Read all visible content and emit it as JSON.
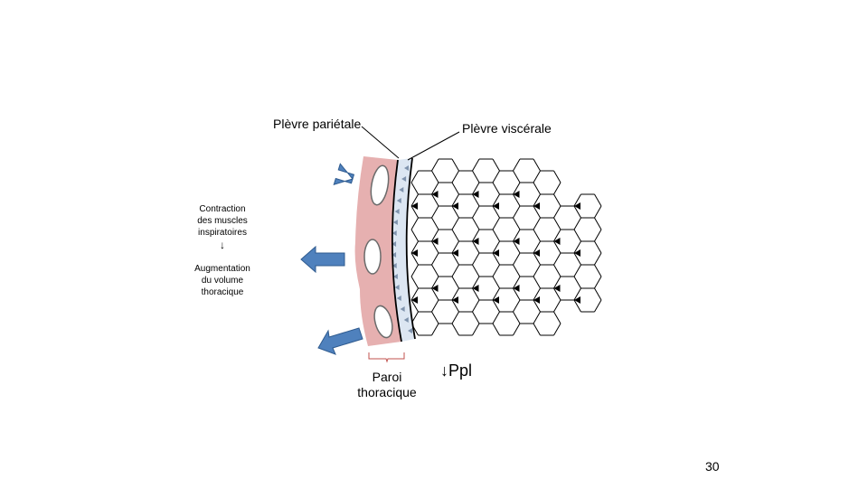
{
  "labels": {
    "parietal_pleura": "Plèvre pariétale",
    "visceral_pleura": "Plèvre viscérale",
    "contraction_line1": "Contraction",
    "contraction_line2": "des muscles",
    "contraction_line3": "inspiratoires",
    "down_arrow": "↓",
    "augmentation_line1": "Augmentation",
    "augmentation_line2": "du volume",
    "augmentation_line3": "thoracique",
    "paroi_line1": "Paroi",
    "paroi_line2": "thoracique",
    "ppl": "↓Ppl"
  },
  "page_number": "30",
  "colors": {
    "chest_wall_fill": "#e6b0b0",
    "pleural_space_fill": "#dce6f2",
    "arrow_fill": "#4f81bd",
    "arrow_stroke": "#2f5b8f",
    "bracket": "#c0504d",
    "lines": "#000000"
  }
}
